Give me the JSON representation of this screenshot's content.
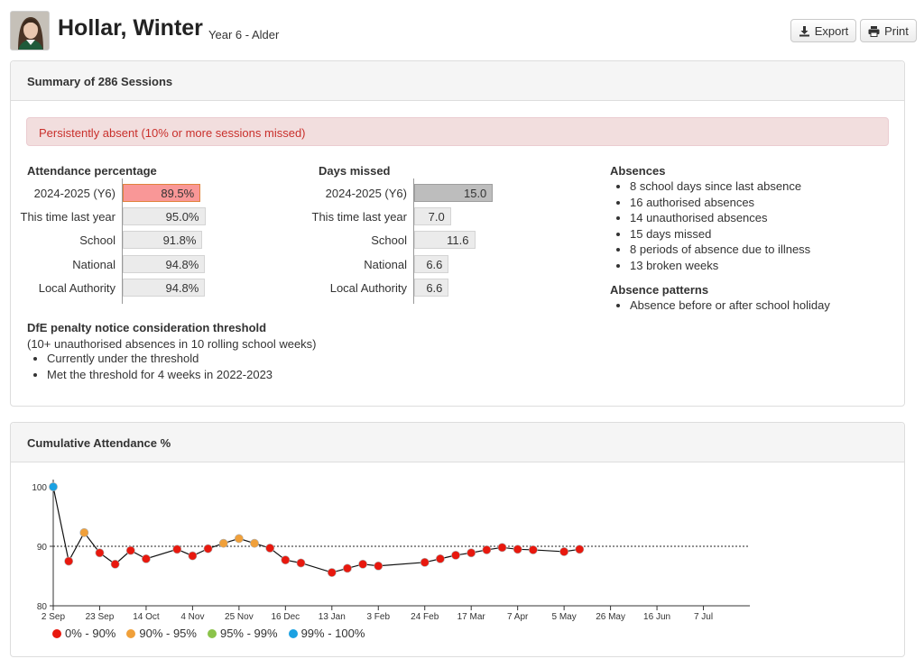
{
  "student": {
    "name": "Hollar, Winter",
    "class": "Year 6 - Alder",
    "avatar_icon": "student-photo"
  },
  "toolbar": {
    "export_label": "Export",
    "print_label": "Print"
  },
  "summary": {
    "title": "Summary of 286 Sessions",
    "alert": "Persistently absent (10% or more sessions missed)",
    "attendance": {
      "title": "Attendance percentage",
      "rows": [
        {
          "label": "2024-2025 (Y6)",
          "value": 89.5,
          "text": "89.5%",
          "highlight": "red"
        },
        {
          "label": "This time last year",
          "value": 95.0,
          "text": "95.0%",
          "highlight": ""
        },
        {
          "label": "School",
          "value": 91.8,
          "text": "91.8%",
          "highlight": ""
        },
        {
          "label": "National",
          "value": 94.8,
          "text": "94.8%",
          "highlight": ""
        },
        {
          "label": "Local Authority",
          "value": 94.8,
          "text": "94.8%",
          "highlight": ""
        }
      ]
    },
    "days_missed": {
      "title": "Days missed",
      "rows": [
        {
          "label": "2024-2025 (Y6)",
          "value": 15.0,
          "text": "15.0",
          "highlight": "grey"
        },
        {
          "label": "This time last year",
          "value": 7.0,
          "text": "7.0",
          "highlight": ""
        },
        {
          "label": "School",
          "value": 11.6,
          "text": "11.6",
          "highlight": ""
        },
        {
          "label": "National",
          "value": 6.6,
          "text": "6.6",
          "highlight": ""
        },
        {
          "label": "Local Authority",
          "value": 6.6,
          "text": "6.6",
          "highlight": ""
        }
      ]
    },
    "absences": {
      "title": "Absences",
      "items": [
        "8 school days since last absence",
        "16 authorised absences",
        "14 unauthorised absences",
        "15 days missed",
        "8 periods of absence due to illness",
        "13 broken weeks"
      ]
    },
    "patterns": {
      "title": "Absence patterns",
      "items": [
        "Absence before or after school holiday"
      ]
    },
    "dfe": {
      "title": "DfE penalty notice consideration threshold",
      "subtitle": "(10+ unauthorised absences in 10 rolling school weeks)",
      "items": [
        "Currently under the threshold",
        "Met the threshold for 4 weeks in 2022-2023"
      ]
    }
  },
  "cumulative": {
    "title": "Cumulative Attendance %"
  },
  "chart_data": {
    "type": "line",
    "title": "Cumulative Attendance %",
    "xlabel": "",
    "ylabel": "",
    "ylim": [
      80,
      100
    ],
    "yticks": [
      80,
      90,
      100
    ],
    "reference_line": 90,
    "x_tick_labels": [
      "2 Sep",
      "23 Sep",
      "14 Oct",
      "4 Nov",
      "25 Nov",
      "16 Dec",
      "13 Jan",
      "3 Feb",
      "24 Feb",
      "17 Mar",
      "7 Apr",
      "5 May",
      "26 May",
      "16 Jun",
      "7 Jul"
    ],
    "x_range_weeks": [
      0,
      45
    ],
    "weeks": [
      0,
      1,
      2,
      3,
      4,
      5,
      6,
      8,
      9,
      10,
      11,
      12,
      13,
      14,
      15,
      16,
      18,
      19,
      20,
      21,
      24,
      25,
      26,
      27,
      28,
      29,
      30,
      31,
      33,
      34
    ],
    "values": [
      100,
      87.5,
      92.3,
      88.9,
      87.0,
      89.3,
      87.9,
      89.5,
      88.4,
      89.6,
      90.5,
      91.3,
      90.5,
      89.7,
      87.7,
      87.2,
      85.6,
      86.3,
      87.0,
      86.7,
      87.3,
      87.9,
      88.5,
      88.9,
      89.4,
      89.8,
      89.5,
      89.4,
      89.1,
      89.5
    ],
    "legend": [
      {
        "label": "0% - 90%",
        "color": "#e8180e"
      },
      {
        "label": "90% - 95%",
        "color": "#f0a03a"
      },
      {
        "label": "95% - 99%",
        "color": "#8bc34a"
      },
      {
        "label": "99% - 100%",
        "color": "#1ba1e2"
      }
    ]
  }
}
